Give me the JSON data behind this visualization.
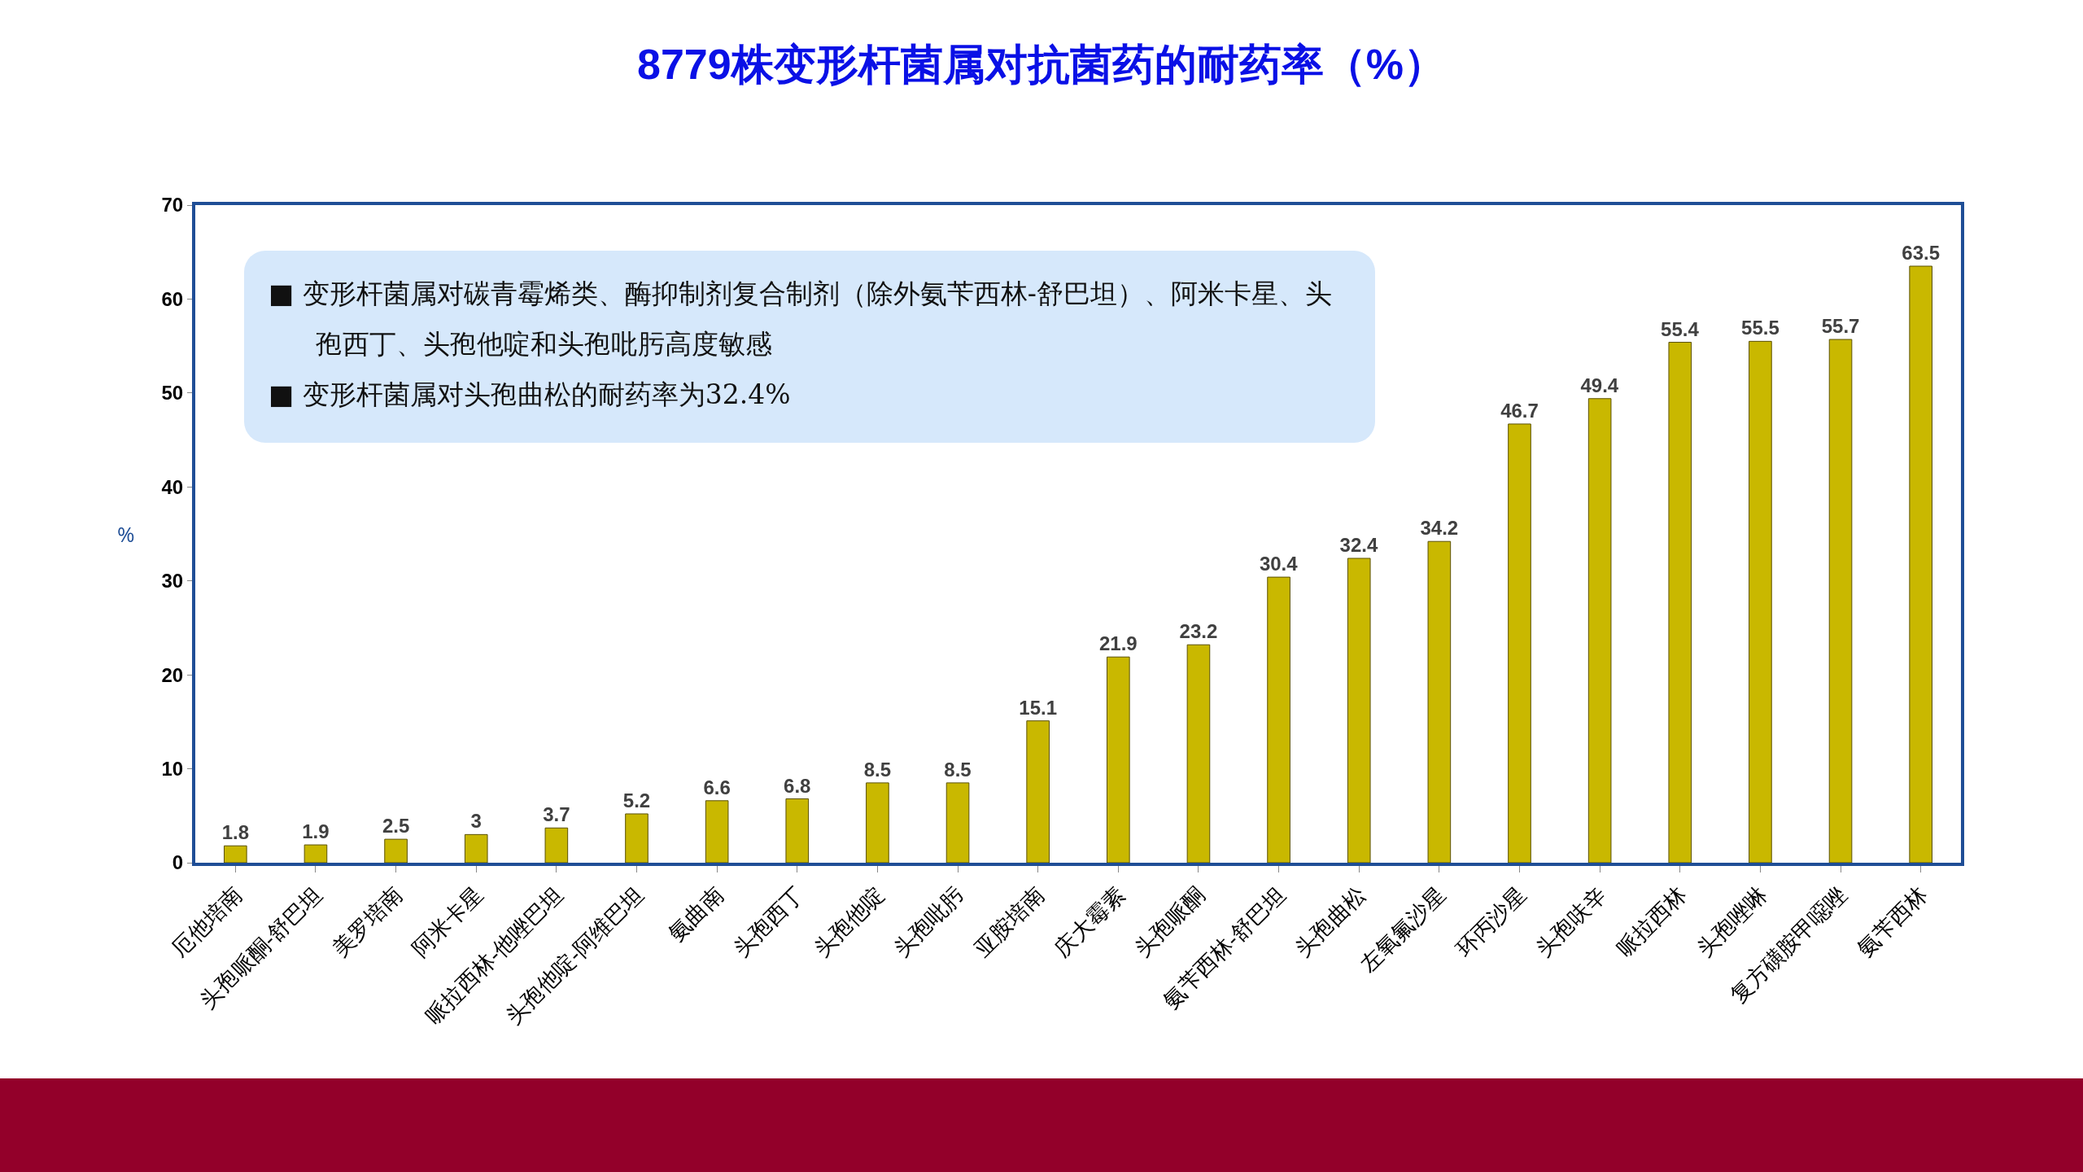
{
  "chart_data": {
    "type": "bar",
    "title": "8779株变形杆菌属对抗菌药的耐药率（%）",
    "ylabel": "%",
    "categories": [
      "厄他培南",
      "头孢哌酮-舒巴坦",
      "美罗培南",
      "阿米卡星",
      "哌拉西林-他唑巴坦",
      "头孢他啶-阿维巴坦",
      "氨曲南",
      "头孢西丁",
      "头孢他啶",
      "头孢吡肟",
      "亚胺培南",
      "庆大霉素",
      "头孢哌酮",
      "氨苄西林-舒巴坦",
      "头孢曲松",
      "左氧氟沙星",
      "环丙沙星",
      "头孢呋辛",
      "哌拉西林",
      "头孢唑啉",
      "复方磺胺甲噁唑",
      "氨苄西林"
    ],
    "values": [
      1.8,
      1.9,
      2.5,
      3,
      3.7,
      5.2,
      6.6,
      6.8,
      8.5,
      8.5,
      15.1,
      21.9,
      23.2,
      30.4,
      32.4,
      34.2,
      46.7,
      49.4,
      55.4,
      55.5,
      55.7,
      63.5
    ],
    "color": "#c9b800",
    "data_labels": true,
    "ylim": [
      0,
      70
    ],
    "yticks": [
      0,
      10,
      20,
      30,
      40,
      50,
      60,
      70
    ],
    "grid": false,
    "legend": false,
    "annotations": [
      "■ 变形杆菌属对碳青霉烯类、酶抑制剂复合制剂（除外氨苄西林-舒巴坦）、阿米卡星、头孢西丁、头孢他啶和头孢吡肟高度敏感",
      "■ 变形杆菌属对头孢曲松的耐药率为32.4%"
    ]
  }
}
